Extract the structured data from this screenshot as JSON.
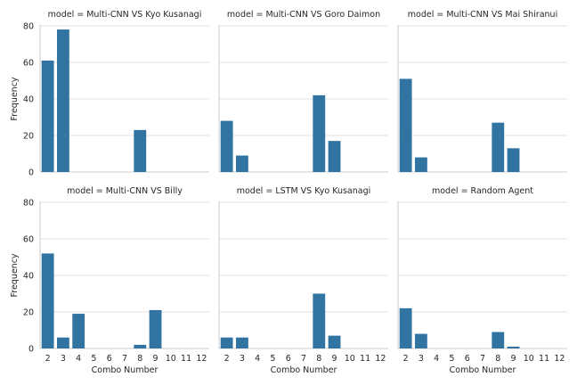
{
  "chart_data": {
    "type": "bar",
    "layout": "facet-grid 2 rows x 3 columns",
    "shared_y": true,
    "shared_x": true,
    "categories": [
      "2",
      "3",
      "4",
      "5",
      "6",
      "7",
      "8",
      "9",
      "10",
      "11",
      "12"
    ],
    "ylim": [
      0,
      80
    ],
    "yticks": [
      0,
      20,
      40,
      60,
      80
    ],
    "ylabel": "Frequency",
    "xlabel": "Combo Number",
    "grid": true,
    "bar_color": "#3274a1",
    "panels": [
      {
        "title": "model = Multi-CNN VS Kyo Kusanagi",
        "values": [
          61,
          78,
          0,
          0,
          0,
          0,
          23,
          0,
          0,
          0,
          0
        ]
      },
      {
        "title": "model = Multi-CNN VS Goro Daimon",
        "values": [
          28,
          9,
          0,
          0,
          0,
          0,
          42,
          17,
          0,
          0,
          0
        ]
      },
      {
        "title": "model = Multi-CNN VS Mai Shiranui",
        "values": [
          51,
          8,
          0,
          0,
          0,
          0,
          27,
          13,
          0,
          0,
          0
        ]
      },
      {
        "title": "model = Multi-CNN VS Billy",
        "values": [
          52,
          6,
          19,
          0,
          0,
          0,
          2,
          21,
          0,
          0,
          0
        ]
      },
      {
        "title": "model = LSTM VS Kyo Kusanagi",
        "values": [
          6,
          6,
          0,
          0,
          0,
          0,
          30,
          7,
          0,
          0,
          0
        ]
      },
      {
        "title": "model = Random Agent",
        "values": [
          22,
          8,
          0,
          0,
          0,
          0,
          9,
          1,
          0,
          0,
          0
        ]
      }
    ]
  }
}
